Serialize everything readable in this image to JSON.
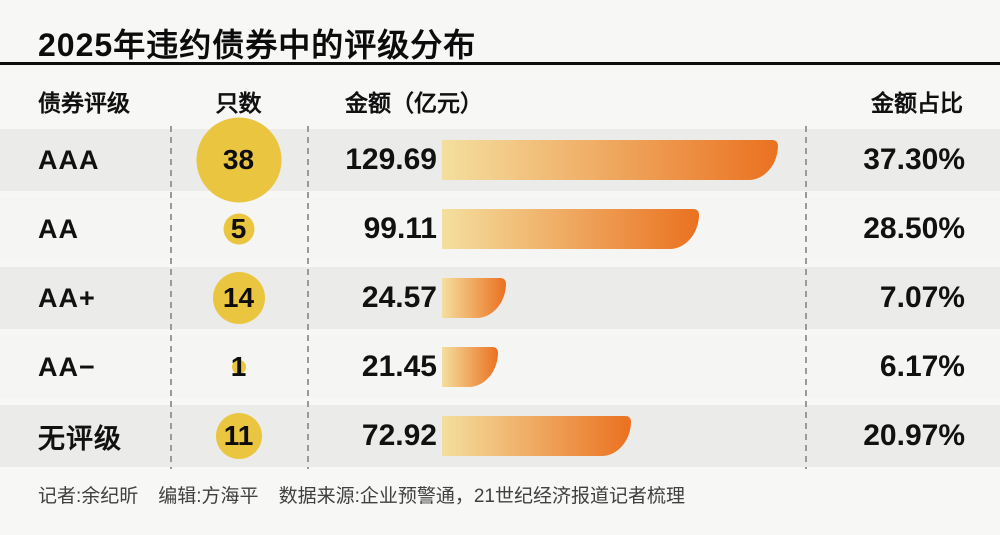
{
  "title": "2025年违约债券中的评级分布",
  "colors": {
    "page_bg": "#f7f7f5",
    "row_dark": "#ebebe9",
    "row_light": "#f5f5f3",
    "accent_yellow": "#eac53f",
    "bar_gradient_start": "#f4df9f",
    "bar_gradient_end": "#ea7120",
    "dash": "#9a9a9a",
    "text": "#111111",
    "footer_text": "#404040"
  },
  "table": {
    "headers": {
      "rating": "债券评级",
      "count": "只数",
      "amount": "金额（亿元）",
      "pct": "金额占比"
    },
    "rows": [
      {
        "rating": "AAA",
        "count": 38,
        "amount": 129.69,
        "pct": "37.30%"
      },
      {
        "rating": "AA",
        "count": 5,
        "amount": 99.11,
        "pct": "28.50%"
      },
      {
        "rating": "AA+",
        "count": 14,
        "amount": 24.57,
        "pct": "7.07%"
      },
      {
        "rating": "AA−",
        "count": 1,
        "amount": 21.45,
        "pct": "6.17%"
      },
      {
        "rating": "无评级",
        "count": 11,
        "amount": 72.92,
        "pct": "20.97%"
      }
    ]
  },
  "footer": {
    "reporter": "记者:余纪昕",
    "editor": "编辑:方海平",
    "source": "数据来源:企业预警通，21世纪经济报道记者梳理"
  },
  "chart_data": {
    "type": "bar",
    "title": "2025年违约债券中的评级分布",
    "categories": [
      "AAA",
      "AA",
      "AA+",
      "AA−",
      "无评级"
    ],
    "series": [
      {
        "name": "只数",
        "values": [
          38,
          5,
          14,
          1,
          11
        ]
      },
      {
        "name": "金额（亿元）",
        "values": [
          129.69,
          99.11,
          24.57,
          21.45,
          72.92
        ]
      },
      {
        "name": "金额占比",
        "values": [
          "37.30%",
          "28.50%",
          "7.07%",
          "6.17%",
          "20.97%"
        ]
      }
    ],
    "xlabel": "",
    "ylabel": "金额（亿元）",
    "xlim": [
      0,
      129.69
    ],
    "bar_encoding": "bar length proportional to 金额, bubble area proportional to 只数",
    "legend_position": "none",
    "grid": false
  }
}
